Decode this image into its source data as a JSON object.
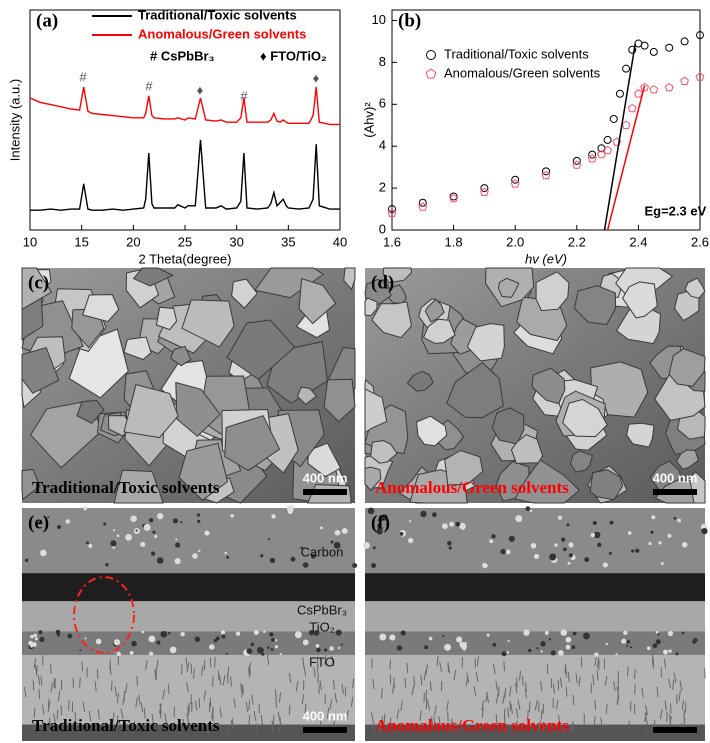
{
  "chart_data": [
    {
      "type": "line",
      "panel_label": "(a)",
      "xlabel": "2 Theta(degree)",
      "ylabel": "Intensity (a.u.)",
      "xlim": [
        10,
        40
      ],
      "xticks": [
        10,
        15,
        20,
        25,
        30,
        35,
        40
      ],
      "ylim": [
        0,
        100
      ],
      "legend": "upper right",
      "x": [
        10,
        11,
        12,
        13,
        14,
        14.8,
        15.2,
        15.6,
        16,
        17,
        18,
        19,
        20,
        21,
        21.2,
        21.5,
        21.8,
        22,
        23,
        24,
        24.3,
        25,
        25.3,
        26,
        26.5,
        27,
        28,
        28.5,
        29,
        30,
        30.4,
        30.7,
        31,
        32,
        33,
        33.3,
        33.6,
        33.9,
        34.2,
        34.5,
        34.8,
        35,
        36,
        37,
        37.4,
        37.7,
        38,
        39,
        40
      ],
      "series": [
        {
          "name": "Traditional/Toxic solvents",
          "color": "#000000",
          "values": [
            9,
            9,
            9.5,
            9,
            9.5,
            9.5,
            21,
            9.5,
            9,
            9,
            9.5,
            9,
            9.5,
            10,
            14,
            35,
            12,
            10,
            10,
            10,
            11.5,
            10,
            11,
            11,
            41,
            10,
            10,
            11,
            9.5,
            10,
            13,
            35,
            10,
            9.5,
            10,
            12,
            17,
            11,
            12.5,
            14,
            11,
            10,
            9.5,
            10,
            14,
            39,
            11,
            9.5,
            9.5
          ]
        },
        {
          "name": "Anomalous/Green solvents",
          "color": "#ff0000",
          "values": [
            60,
            58,
            57,
            56,
            55,
            54.5,
            65,
            54,
            53,
            52.5,
            52,
            51.5,
            51,
            51,
            53,
            61,
            52,
            51,
            50.5,
            50.5,
            51,
            50,
            51,
            50.5,
            60,
            50,
            49.5,
            50,
            49,
            49,
            51,
            60,
            49,
            49,
            49,
            50,
            53,
            49.5,
            49,
            50,
            49,
            48.5,
            48.5,
            48.5,
            52,
            65,
            49,
            48,
            48
          ]
        }
      ],
      "peak_marks": [
        "#",
        "#",
        "♦",
        "#",
        "♦"
      ],
      "legend_notes": [
        "# CsPbBr₃",
        "♦ FTO/TiO₂"
      ]
    },
    {
      "type": "scatter",
      "panel_label": "(b)",
      "xlabel": "hv (eV)",
      "ylabel": "(Ahv)²",
      "xlim": [
        1.6,
        2.6
      ],
      "xticks": [
        1.6,
        1.8,
        {
          "value": 2,
          "label": "2.0"
        },
        2.2,
        2.4,
        2.6
      ],
      "ylim": [
        0,
        10.5
      ],
      "yticks": [
        0,
        2,
        4,
        6,
        8,
        10
      ],
      "legend": "upper right",
      "series": [
        {
          "name": "Traditional/Toxic solvents",
          "color": "#000000",
          "marker": "circle",
          "x": [
            1.6,
            1.7,
            1.8,
            1.9,
            2.0,
            2.1,
            2.2,
            2.25,
            2.28,
            2.3,
            2.32,
            2.34,
            2.36,
            2.38,
            2.4,
            2.42,
            2.45,
            2.5,
            2.55,
            2.6
          ],
          "values": [
            1.0,
            1.3,
            1.6,
            2.0,
            2.4,
            2.8,
            3.3,
            3.6,
            3.9,
            4.3,
            5.3,
            6.5,
            7.7,
            8.6,
            8.9,
            8.8,
            8.5,
            8.7,
            9.0,
            9.3
          ]
        },
        {
          "name": "Anomalous/Green solvents",
          "color": "#ff4d6a",
          "marker": "pentagon",
          "x": [
            1.6,
            1.7,
            1.8,
            1.9,
            2.0,
            2.1,
            2.2,
            2.25,
            2.28,
            2.3,
            2.33,
            2.36,
            2.38,
            2.4,
            2.42,
            2.45,
            2.5,
            2.55,
            2.6
          ],
          "values": [
            0.8,
            1.1,
            1.5,
            1.8,
            2.2,
            2.6,
            3.1,
            3.4,
            3.6,
            3.8,
            4.2,
            5.0,
            5.8,
            6.5,
            6.8,
            6.7,
            6.8,
            7.1,
            7.3
          ]
        }
      ],
      "fit_lines": [
        {
          "color": "#000000",
          "x": [
            2.29,
            2.39
          ],
          "values": [
            0,
            8.9
          ]
        },
        {
          "color": "#ff0000",
          "x": [
            2.3,
            2.42
          ],
          "values": [
            0,
            6.9
          ]
        }
      ],
      "annotation": "Eg=2.3 eV"
    }
  ],
  "panels": [
    {
      "label": "(c)",
      "caption": "Traditional/Toxic solvents",
      "caption_color": "#000000",
      "scale_bar": "400 nm"
    },
    {
      "label": "(d)",
      "caption": "Anomalous/Green solvents",
      "caption_color": "#ff0000",
      "scale_bar": "400 nm"
    },
    {
      "label": "(e)",
      "caption": "Traditional/Toxic solvents",
      "caption_color": "#000000",
      "scale_bar": "400 nm",
      "layers": [
        "Carbon",
        "CsPbBr₃",
        "TiO₂",
        "FTO"
      ]
    },
    {
      "label": "(f)",
      "caption": "Anomalous/Green solvents",
      "caption_color": "#ff0000"
    }
  ]
}
